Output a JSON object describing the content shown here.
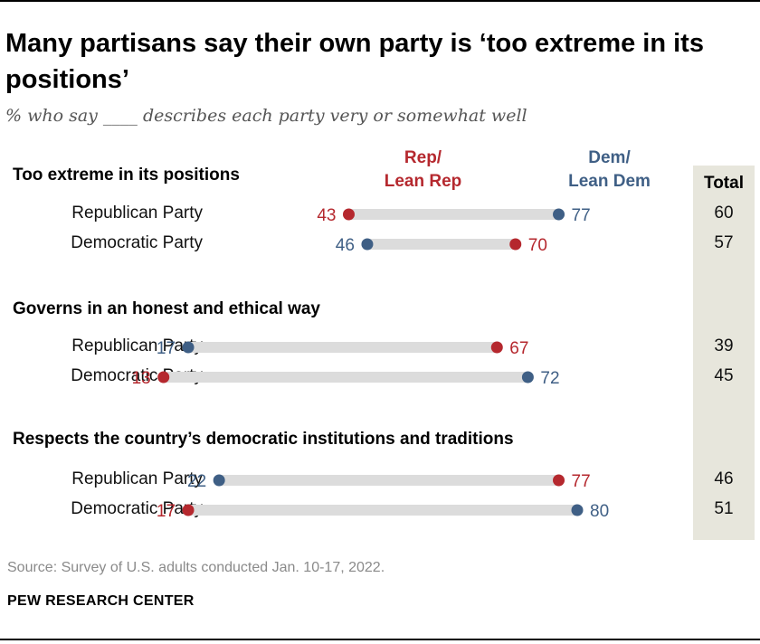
{
  "title": "Many partisans say their own party is ‘too extreme in its positions’",
  "subtitle": "% who say ____ describes each party very or somewhat well",
  "headers": {
    "rep": [
      "Rep/",
      "Lean Rep"
    ],
    "dem": [
      "Dem/",
      "Lean Dem"
    ],
    "total": "Total"
  },
  "colors": {
    "rep": "#b5282e",
    "dem": "#3f5f85",
    "bar": "#dcdcdc",
    "total_bg": "#e7e6dc"
  },
  "chart_data": {
    "type": "dot",
    "series": [
      {
        "name": "Rep/Lean Rep",
        "color": "#b5282e"
      },
      {
        "name": "Dem/Lean Dem",
        "color": "#3f5f85"
      }
    ],
    "groups": [
      {
        "label": "Too extreme in its positions",
        "rows": [
          {
            "label": "Republican Party",
            "rep": 43,
            "dem": 77,
            "total": 60
          },
          {
            "label": "Democratic Party",
            "rep": 70,
            "dem": 46,
            "total": 57
          }
        ]
      },
      {
        "label": "Governs in an honest and ethical way",
        "rows": [
          {
            "label": "Republican Party",
            "rep": 67,
            "dem": 17,
            "total": 39
          },
          {
            "label": "Democratic Party",
            "rep": 13,
            "dem": 72,
            "total": 45
          }
        ]
      },
      {
        "label": "Respects the country’s democratic institutions and traditions",
        "rows": [
          {
            "label": "Republican Party",
            "rep": 77,
            "dem": 22,
            "total": 46
          },
          {
            "label": "Democratic Party",
            "rep": 17,
            "dem": 80,
            "total": 51
          }
        ]
      }
    ]
  },
  "source": "Source: Survey of U.S. adults conducted Jan. 10-17, 2022.",
  "organization": "PEW RESEARCH CENTER"
}
